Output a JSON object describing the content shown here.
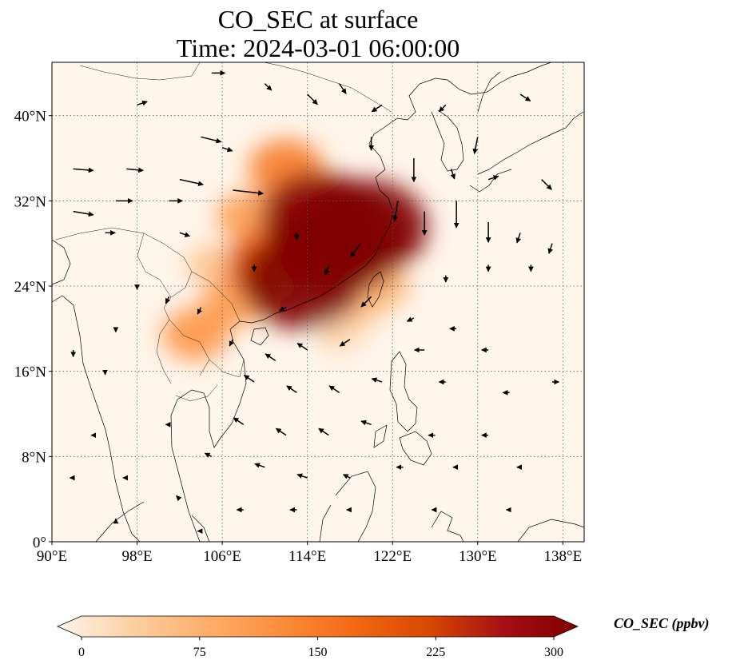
{
  "title": "CO_SEC at surface",
  "subtitle": "Time: 2024-03-01 06:00:00",
  "map": {
    "lon_range": [
      90,
      140
    ],
    "lat_range": [
      0,
      45
    ],
    "lon_ticks": [
      90,
      98,
      106,
      114,
      122,
      130,
      138
    ],
    "lat_ticks": [
      0,
      8,
      16,
      24,
      32,
      40
    ],
    "lon_tick_labels": [
      "90°E",
      "98°E",
      "106°E",
      "114°E",
      "122°E",
      "130°E",
      "138°E"
    ],
    "lat_tick_labels": [
      "0°",
      "8°N",
      "16°N",
      "24°N",
      "32°N",
      "40°N"
    ],
    "gridlines": "dotted",
    "background_color": "#fff5eb",
    "coastline_color": "#000000"
  },
  "colorbar": {
    "label": "CO_SEC (ppbv)",
    "min": 0,
    "max": 300,
    "ticks": [
      0,
      75,
      150,
      225,
      300
    ],
    "tick_labels": [
      "0",
      "75",
      "150",
      "225",
      "300"
    ],
    "extend": "both",
    "colormap": [
      "#fff5eb",
      "#fdd0a2",
      "#fdae6b",
      "#fd8d3c",
      "#f16913",
      "#d94801",
      "#a50f15",
      "#7f0000"
    ]
  },
  "plumes": [
    {
      "lon": 117,
      "lat": 28,
      "value": 340
    },
    {
      "lon": 113.5,
      "lat": 24.5,
      "value": 320
    },
    {
      "lon": 119.5,
      "lat": 29.5,
      "value": 320
    },
    {
      "lon": 115,
      "lat": 30.5,
      "value": 290
    },
    {
      "lon": 110.5,
      "lat": 26,
      "value": 200
    },
    {
      "lon": 108.5,
      "lat": 30.5,
      "value": 110
    },
    {
      "lon": 112,
      "lat": 35,
      "value": 150
    },
    {
      "lon": 103.5,
      "lat": 19.5,
      "value": 120
    },
    {
      "lon": 107,
      "lat": 22.5,
      "value": 110
    },
    {
      "lon": 105,
      "lat": 26,
      "value": 60
    },
    {
      "lon": 119,
      "lat": 22,
      "value": 60
    },
    {
      "lon": 121,
      "lat": 24,
      "value": 80
    },
    {
      "lon": 117,
      "lat": 19.5,
      "value": 40
    }
  ],
  "wind_vectors": [
    {
      "lon": 92,
      "lat": 35,
      "u": 6,
      "v": -0.5
    },
    {
      "lon": 97,
      "lat": 35,
      "u": 5,
      "v": -0.5
    },
    {
      "lon": 102,
      "lat": 34,
      "u": 7,
      "v": -1.5
    },
    {
      "lon": 107,
      "lat": 33,
      "u": 9,
      "v": -1
    },
    {
      "lon": 96,
      "lat": 32,
      "u": 5,
      "v": 0
    },
    {
      "lon": 101,
      "lat": 32,
      "u": 4,
      "v": 0
    },
    {
      "lon": 92,
      "lat": 31,
      "u": 6,
      "v": -1
    },
    {
      "lon": 95,
      "lat": 29,
      "u": 3,
      "v": 0
    },
    {
      "lon": 102,
      "lat": 29,
      "u": 3,
      "v": -1
    },
    {
      "lon": 104,
      "lat": 38,
      "u": 6,
      "v": -1.5
    },
    {
      "lon": 106,
      "lat": 37,
      "u": 3,
      "v": -1
    },
    {
      "lon": 98,
      "lat": 41,
      "u": 3,
      "v": 1
    },
    {
      "lon": 105,
      "lat": 44,
      "u": 4,
      "v": 0
    },
    {
      "lon": 110,
      "lat": 43,
      "u": 2,
      "v": -2
    },
    {
      "lon": 114,
      "lat": 42,
      "u": 3,
      "v": -3
    },
    {
      "lon": 117,
      "lat": 43,
      "u": 2,
      "v": -3
    },
    {
      "lon": 121,
      "lat": 41,
      "u": -3,
      "v": -2
    },
    {
      "lon": 127,
      "lat": 41,
      "u": -2,
      "v": -2
    },
    {
      "lon": 134,
      "lat": 42,
      "u": 3,
      "v": -2
    },
    {
      "lon": 130,
      "lat": 38,
      "u": -1,
      "v": -5
    },
    {
      "lon": 124,
      "lat": 36,
      "u": 0,
      "v": -7
    },
    {
      "lon": 120,
      "lat": 38,
      "u": 0,
      "v": -4
    },
    {
      "lon": 127.5,
      "lat": 35,
      "u": 1,
      "v": -3
    },
    {
      "lon": 131,
      "lat": 34,
      "u": 3,
      "v": 1
    },
    {
      "lon": 136,
      "lat": 34,
      "u": 3,
      "v": -3
    },
    {
      "lon": 125,
      "lat": 31,
      "u": 0,
      "v": -7
    },
    {
      "lon": 128,
      "lat": 32,
      "u": 0,
      "v": -8
    },
    {
      "lon": 131,
      "lat": 30,
      "u": 0,
      "v": -6
    },
    {
      "lon": 122.5,
      "lat": 32,
      "u": -1,
      "v": -6
    },
    {
      "lon": 134,
      "lat": 29,
      "u": -1,
      "v": -3
    },
    {
      "lon": 137,
      "lat": 28,
      "u": -1,
      "v": -3
    },
    {
      "lon": 131,
      "lat": 26,
      "u": 0,
      "v": -2
    },
    {
      "lon": 135,
      "lat": 26,
      "u": 0,
      "v": -2
    },
    {
      "lon": 127,
      "lat": 25,
      "u": 0,
      "v": -2
    },
    {
      "lon": 119,
      "lat": 28,
      "u": -3,
      "v": -4
    },
    {
      "lon": 113,
      "lat": 29,
      "u": 0,
      "v": -2
    },
    {
      "lon": 116,
      "lat": 26,
      "u": -1,
      "v": -3
    },
    {
      "lon": 109,
      "lat": 26,
      "u": 0,
      "v": -2
    },
    {
      "lon": 112,
      "lat": 22,
      "u": -2,
      "v": -1
    },
    {
      "lon": 120,
      "lat": 23,
      "u": -3,
      "v": -3
    },
    {
      "lon": 118,
      "lat": 19,
      "u": -3,
      "v": -2
    },
    {
      "lon": 124,
      "lat": 21,
      "u": -2,
      "v": -1
    },
    {
      "lon": 128,
      "lat": 20,
      "u": -2,
      "v": 0
    },
    {
      "lon": 125,
      "lat": 18,
      "u": -3,
      "v": 0
    },
    {
      "lon": 131,
      "lat": 18,
      "u": -2,
      "v": 0
    },
    {
      "lon": 111,
      "lat": 17,
      "u": -3,
      "v": 2
    },
    {
      "lon": 114,
      "lat": 18,
      "u": -3,
      "v": 2
    },
    {
      "lon": 107,
      "lat": 19,
      "u": -1,
      "v": -2
    },
    {
      "lon": 104,
      "lat": 22,
      "u": -1,
      "v": -2
    },
    {
      "lon": 101,
      "lat": 23,
      "u": -1,
      "v": -2
    },
    {
      "lon": 98,
      "lat": 24,
      "u": 0,
      "v": -1
    },
    {
      "lon": 96,
      "lat": 20,
      "u": 0,
      "v": -1
    },
    {
      "lon": 92,
      "lat": 18,
      "u": 0,
      "v": -2
    },
    {
      "lon": 95,
      "lat": 16,
      "u": 0,
      "v": -1
    },
    {
      "lon": 109,
      "lat": 15,
      "u": -3,
      "v": 2
    },
    {
      "lon": 113,
      "lat": 14,
      "u": -3,
      "v": 2
    },
    {
      "lon": 117,
      "lat": 14,
      "u": -3,
      "v": 2
    },
    {
      "lon": 121,
      "lat": 15,
      "u": -3,
      "v": 1
    },
    {
      "lon": 127,
      "lat": 15,
      "u": -2,
      "v": 0
    },
    {
      "lon": 133,
      "lat": 14,
      "u": -2,
      "v": 0
    },
    {
      "lon": 137,
      "lat": 15,
      "u": 2,
      "v": 0
    },
    {
      "lon": 108,
      "lat": 11,
      "u": -3,
      "v": 2
    },
    {
      "lon": 112,
      "lat": 10,
      "u": -3,
      "v": 2
    },
    {
      "lon": 116,
      "lat": 10,
      "u": -3,
      "v": 2
    },
    {
      "lon": 120,
      "lat": 11,
      "u": -3,
      "v": 1
    },
    {
      "lon": 126,
      "lat": 10,
      "u": -2,
      "v": 0
    },
    {
      "lon": 131,
      "lat": 10,
      "u": -2,
      "v": 0
    },
    {
      "lon": 101,
      "lat": 11,
      "u": -1,
      "v": 0
    },
    {
      "lon": 94,
      "lat": 10,
      "u": -1,
      "v": 0
    },
    {
      "lon": 105,
      "lat": 8,
      "u": -2,
      "v": 1
    },
    {
      "lon": 110,
      "lat": 7,
      "u": -3,
      "v": 1
    },
    {
      "lon": 114,
      "lat": 6,
      "u": -3,
      "v": 1
    },
    {
      "lon": 118,
      "lat": 6,
      "u": -2,
      "v": 1
    },
    {
      "lon": 123,
      "lat": 7,
      "u": -2,
      "v": 0
    },
    {
      "lon": 128,
      "lat": 7,
      "u": -1,
      "v": 0
    },
    {
      "lon": 134,
      "lat": 7,
      "u": -1,
      "v": 0
    },
    {
      "lon": 92,
      "lat": 6,
      "u": -1,
      "v": 0
    },
    {
      "lon": 97,
      "lat": 6,
      "u": -1,
      "v": 0
    },
    {
      "lon": 102,
      "lat": 4,
      "u": -1,
      "v": 1
    },
    {
      "lon": 108,
      "lat": 3,
      "u": -2,
      "v": 0
    },
    {
      "lon": 113,
      "lat": 3,
      "u": -2,
      "v": 0
    },
    {
      "lon": 118,
      "lat": 3,
      "u": -1,
      "v": 0
    },
    {
      "lon": 126,
      "lat": 3,
      "u": -1,
      "v": 0
    },
    {
      "lon": 133,
      "lat": 3,
      "u": -1,
      "v": 0
    },
    {
      "lon": 96,
      "lat": 2,
      "u": 0,
      "v": 0.5
    },
    {
      "lon": 104,
      "lat": 1,
      "u": -1,
      "v": 0
    }
  ]
}
